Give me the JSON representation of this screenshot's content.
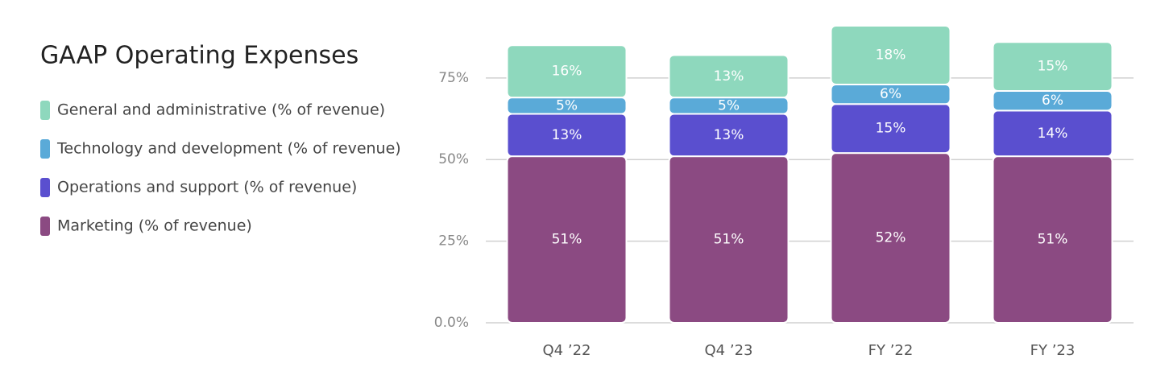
{
  "chart_data": {
    "type": "stacked-bar",
    "title": "GAAP Operating Expenses",
    "categories": [
      "Q4 ’22",
      "Q4 ’23",
      "FY ’22",
      "FY ’23"
    ],
    "series": [
      {
        "name": "Marketing (% of revenue)",
        "color": "#8b4a82",
        "values": [
          51,
          51,
          52,
          51
        ],
        "value_labels": [
          "51%",
          "51%",
          "52%",
          "51%"
        ]
      },
      {
        "name": "Operations and support (% of revenue)",
        "color": "#5a4fcf",
        "values": [
          13,
          13,
          15,
          14
        ],
        "value_labels": [
          "13%",
          "13%",
          "15%",
          "14%"
        ]
      },
      {
        "name": "Technology and development (% of revenue)",
        "color": "#5aaad8",
        "values": [
          5,
          5,
          6,
          6
        ],
        "value_labels": [
          "5%",
          "5%",
          "6%",
          "6%"
        ]
      },
      {
        "name": "General and administrative (% of revenue)",
        "color": "#8ed8bd",
        "values": [
          16,
          13,
          18,
          15
        ],
        "value_labels": [
          "16%",
          "13%",
          "18%",
          "15%"
        ]
      }
    ],
    "ylim": [
      0,
      90
    ],
    "yticks": [
      {
        "value": 0,
        "label": "0.0%"
      },
      {
        "value": 25,
        "label": "25%"
      },
      {
        "value": 50,
        "label": "50%"
      },
      {
        "value": 75,
        "label": "75%"
      }
    ],
    "grid": true
  }
}
